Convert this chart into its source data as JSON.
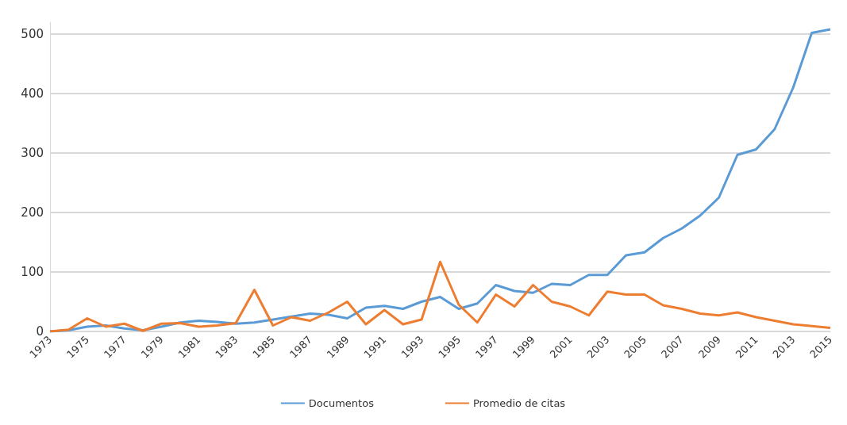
{
  "chart_data": {
    "type": "line",
    "categories": [
      "1973",
      null,
      "1975",
      null,
      "1977",
      null,
      "1979",
      null,
      "1981",
      null,
      "1983",
      null,
      "1985",
      null,
      "1987",
      null,
      "1989",
      null,
      "1991",
      null,
      "1993",
      null,
      "1995",
      null,
      "1997",
      null,
      "1999",
      null,
      "2001",
      null,
      "2003",
      null,
      "2005",
      null,
      "2007",
      null,
      "2009",
      null,
      "2011",
      null,
      "2013",
      null,
      "2015"
    ],
    "series": [
      {
        "name": "Documentos",
        "color": "#5b9bd5",
        "values": [
          0,
          2,
          8,
          10,
          5,
          2,
          8,
          15,
          18,
          16,
          13,
          15,
          20,
          25,
          30,
          28,
          22,
          40,
          43,
          38,
          50,
          58,
          38,
          47,
          78,
          68,
          65,
          80,
          78,
          95,
          95,
          128,
          133,
          157,
          173,
          195,
          225,
          297,
          306,
          340,
          410,
          502,
          508
        ]
      },
      {
        "name": "Promedio de citas",
        "color": "#ed7d31",
        "values": [
          0,
          3,
          22,
          8,
          13,
          1,
          13,
          14,
          8,
          10,
          14,
          70,
          10,
          24,
          18,
          32,
          50,
          12,
          36,
          12,
          20,
          117,
          45,
          15,
          62,
          42,
          78,
          50,
          42,
          27,
          67,
          62,
          62,
          44,
          38,
          30,
          27,
          32,
          24,
          18,
          12,
          9,
          6
        ]
      }
    ],
    "ylim": [
      0,
      520
    ],
    "yticks": [
      0,
      100,
      200,
      300,
      400,
      500
    ],
    "grid": "y",
    "legend": "bottom",
    "marker": "none",
    "line_style": "solid"
  }
}
